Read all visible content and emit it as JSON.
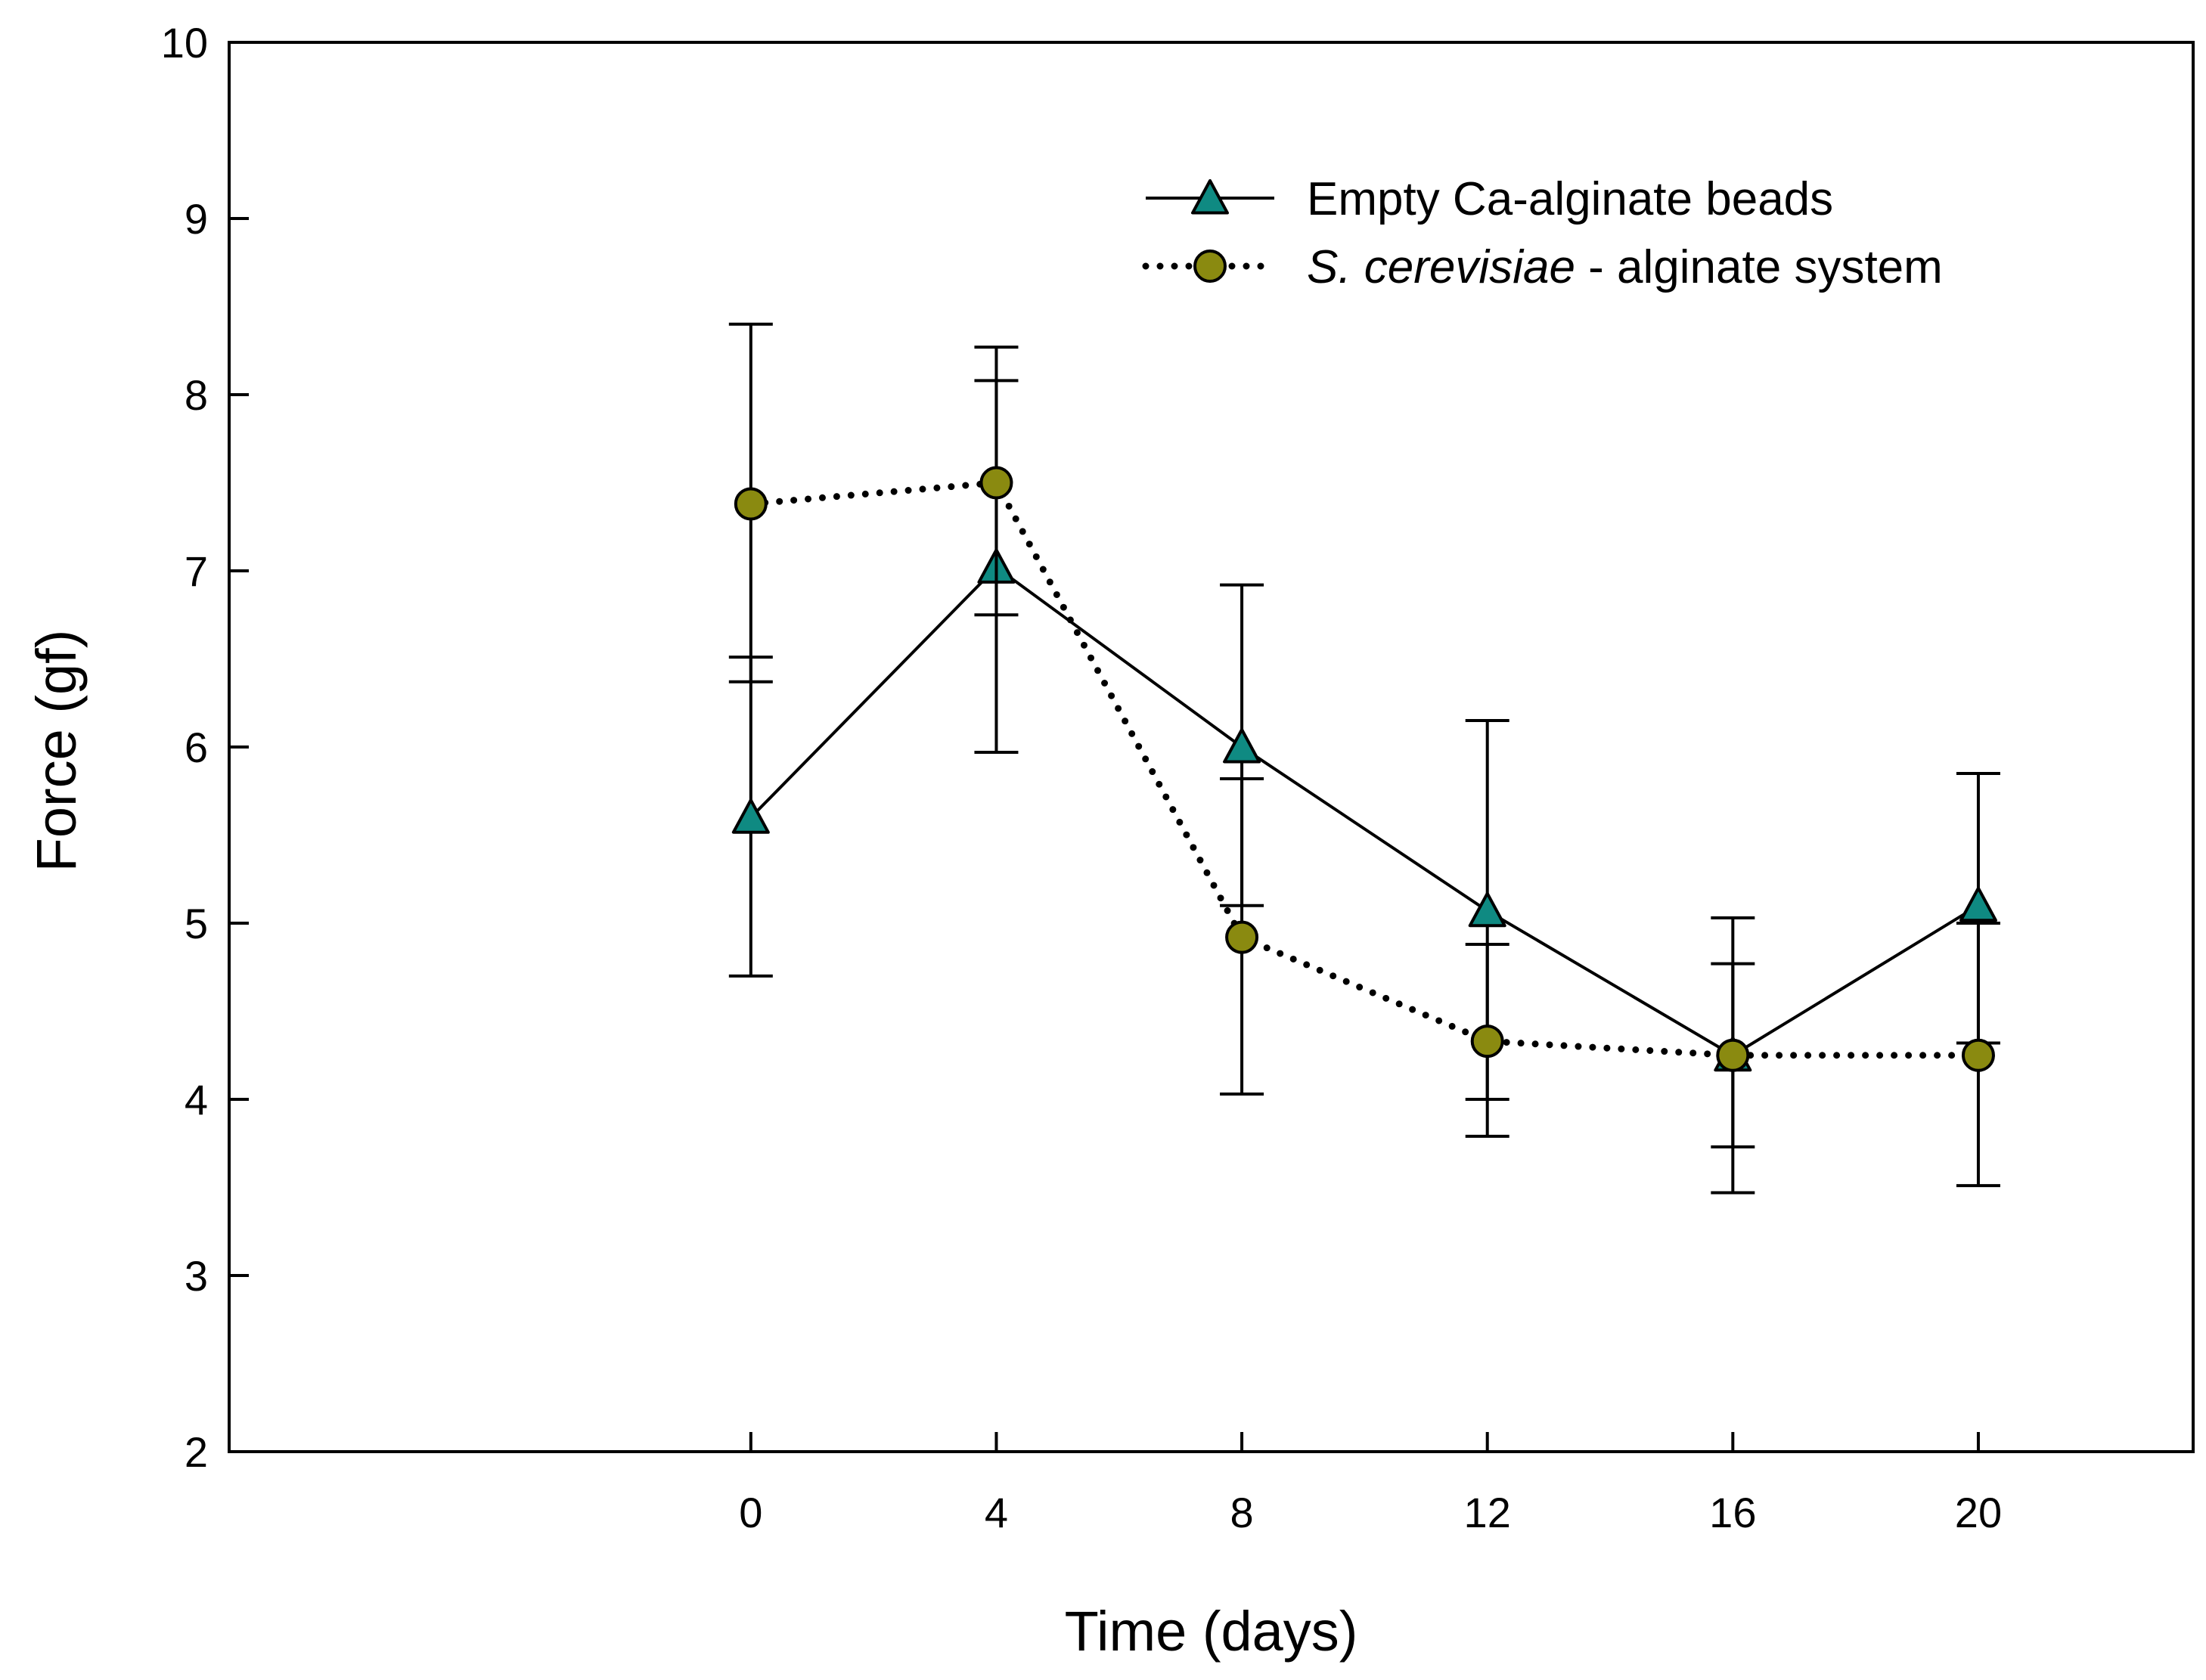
{
  "chart_data": {
    "type": "line",
    "title": "",
    "xlabel": "Time (days)",
    "ylabel": "Force (gf)",
    "xlim": [
      -8.5,
      23.5
    ],
    "ylim": [
      2,
      10
    ],
    "xticks": [
      0,
      4,
      8,
      12,
      16,
      20
    ],
    "yticks": [
      2,
      3,
      4,
      5,
      6,
      7,
      8,
      9,
      10
    ],
    "grid": false,
    "legend_position": "top-right",
    "series": [
      {
        "name": "Empty Ca-alginate beads",
        "legend_parts": [
          "Empty Ca-alginate beads"
        ],
        "line_style": "solid",
        "marker": "triangle",
        "marker_color": "#0f8a82",
        "x": [
          0,
          4,
          8,
          12,
          16,
          20
        ],
        "y": [
          5.6,
          7.02,
          6.0,
          5.07,
          4.25,
          5.1
        ],
        "err_low": [
          4.7,
          5.97,
          5.1,
          4.0,
          3.73,
          4.32
        ],
        "err_high": [
          6.51,
          8.08,
          6.92,
          6.15,
          4.77,
          5.85
        ]
      },
      {
        "name": "S. cerevisiae - alginate system",
        "legend_parts": [
          "S. cerevisiae",
          " - alginate system"
        ],
        "line_style": "dotted",
        "marker": "circle",
        "marker_color": "#8a8a10",
        "x": [
          0,
          4,
          8,
          12,
          16,
          20
        ],
        "y": [
          7.38,
          7.5,
          4.92,
          4.33,
          4.25,
          4.25
        ],
        "err_low": [
          6.37,
          6.75,
          4.03,
          3.79,
          3.47,
          3.51
        ],
        "err_high": [
          8.4,
          8.27,
          5.82,
          4.88,
          5.03,
          5.0
        ]
      }
    ]
  }
}
